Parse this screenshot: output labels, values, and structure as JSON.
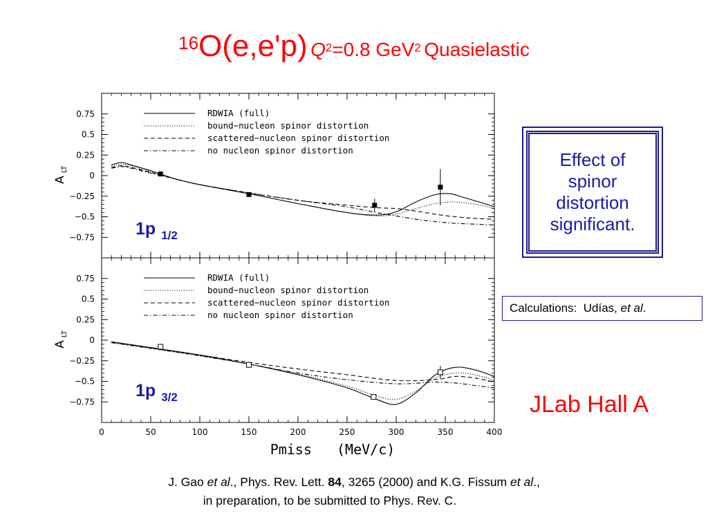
{
  "title": {
    "nucleus_mass": "16",
    "reaction": "O(e,e'p)",
    "q_symbol": "Q",
    "q_exp": "2",
    "q_value": "=0.8 GeV",
    "unit_exp": "2",
    "kind": "Quasielastic"
  },
  "effect_box": {
    "line1": "Effect of",
    "line2": "spinor",
    "line3": "distortion",
    "line4": "significant."
  },
  "calc_box": {
    "prefix": "Calculations:  Udías, ",
    "etal": "et al",
    "suffix": "."
  },
  "jlab": "JLab Hall A",
  "reference": {
    "a1": "J. Gao ",
    "a2": "et al",
    "a3": "., Phys. Rev. Lett. ",
    "a4": "84",
    "a5": ", 3265 (2000) and K.G. Fissum ",
    "a6": "et al",
    "a7": ".,",
    "line2": "in preparation, to be submitted to Phys. Rev. C."
  },
  "chart_data": {
    "type": "line",
    "shared_x_axis": {
      "label": "Pmiss   (MeV/c)",
      "ticks": [
        0,
        50,
        100,
        150,
        200,
        250,
        300,
        350,
        400
      ],
      "range": [
        0,
        400
      ]
    },
    "legend_entries": [
      "RDWIA (full)",
      "bound−nucleon spinor distortion",
      "scattered−nucleon spinor distortion",
      "no nucleon spinor distortion"
    ],
    "line_styles": [
      "solid",
      "dotted",
      "dashed",
      "dashdot"
    ],
    "panels": [
      {
        "label_main": "1p",
        "label_sub": "1/2",
        "ylabel_main": "A",
        "ylabel_sub": "LT",
        "yticks": [
          "0.75",
          "0.5",
          "0.25",
          "0",
          "−0.25",
          "−0.5",
          "−0.75"
        ],
        "ytick_values": [
          0.75,
          0.5,
          0.25,
          0,
          -0.25,
          -0.5,
          -0.75
        ],
        "ylim": [
          -1.0,
          1.0
        ],
        "marker": "filled-square",
        "data_points": [
          {
            "x": 60,
            "y": 0.02,
            "err": 0.03
          },
          {
            "x": 150,
            "y": -0.23,
            "err": 0.02
          },
          {
            "x": 278,
            "y": -0.36,
            "err": 0.08
          },
          {
            "x": 345,
            "y": -0.14,
            "err": 0.22
          }
        ],
        "series": [
          {
            "name": "RDWIA (full)",
            "points": [
              [
                10,
                0.13
              ],
              [
                20,
                0.16
              ],
              [
                30,
                0.13
              ],
              [
                50,
                0.06
              ],
              [
                75,
                -0.04
              ],
              [
                100,
                -0.11
              ],
              [
                150,
                -0.22
              ],
              [
                200,
                -0.34
              ],
              [
                250,
                -0.45
              ],
              [
                280,
                -0.48
              ],
              [
                300,
                -0.44
              ],
              [
                320,
                -0.32
              ],
              [
                340,
                -0.23
              ],
              [
                355,
                -0.22
              ],
              [
                370,
                -0.27
              ],
              [
                390,
                -0.34
              ],
              [
                400,
                -0.38
              ]
            ]
          },
          {
            "name": "bound−nucleon spinor distortion",
            "points": [
              [
                10,
                0.12
              ],
              [
                20,
                0.14
              ],
              [
                30,
                0.12
              ],
              [
                50,
                0.05
              ],
              [
                75,
                -0.04
              ],
              [
                100,
                -0.11
              ],
              [
                150,
                -0.22
              ],
              [
                200,
                -0.34
              ],
              [
                250,
                -0.45
              ],
              [
                280,
                -0.49
              ],
              [
                300,
                -0.47
              ],
              [
                320,
                -0.4
              ],
              [
                340,
                -0.34
              ],
              [
                355,
                -0.32
              ],
              [
                370,
                -0.33
              ],
              [
                390,
                -0.37
              ],
              [
                400,
                -0.4
              ]
            ]
          },
          {
            "name": "scattered−nucleon spinor distortion",
            "points": [
              [
                10,
                0.1
              ],
              [
                20,
                0.12
              ],
              [
                30,
                0.1
              ],
              [
                50,
                0.04
              ],
              [
                75,
                -0.04
              ],
              [
                100,
                -0.11
              ],
              [
                150,
                -0.21
              ],
              [
                200,
                -0.3
              ],
              [
                250,
                -0.36
              ],
              [
                280,
                -0.39
              ],
              [
                300,
                -0.4
              ],
              [
                320,
                -0.43
              ],
              [
                340,
                -0.47
              ],
              [
                360,
                -0.5
              ],
              [
                380,
                -0.52
              ],
              [
                400,
                -0.53
              ]
            ]
          },
          {
            "name": "no nucleon spinor distortion",
            "points": [
              [
                10,
                0.09
              ],
              [
                20,
                0.11
              ],
              [
                30,
                0.09
              ],
              [
                50,
                0.03
              ],
              [
                75,
                -0.04
              ],
              [
                100,
                -0.11
              ],
              [
                150,
                -0.21
              ],
              [
                200,
                -0.3
              ],
              [
                250,
                -0.38
              ],
              [
                280,
                -0.45
              ],
              [
                300,
                -0.49
              ],
              [
                320,
                -0.53
              ],
              [
                340,
                -0.56
              ],
              [
                360,
                -0.58
              ],
              [
                380,
                -0.59
              ],
              [
                400,
                -0.6
              ]
            ]
          }
        ]
      },
      {
        "label_main": "1p",
        "label_sub": "3/2",
        "ylabel_main": "A",
        "ylabel_sub": "LT",
        "yticks": [
          "0.75",
          "0.5",
          "0.25",
          "0",
          "−0.25",
          "−0.5",
          "−0.75"
        ],
        "ytick_values": [
          0.75,
          0.5,
          0.25,
          0,
          -0.25,
          -0.5,
          -0.75
        ],
        "ylim": [
          -1.0,
          1.0
        ],
        "marker": "open-square",
        "data_points": [
          {
            "x": 60,
            "y": -0.08,
            "err": 0.02
          },
          {
            "x": 150,
            "y": -0.3,
            "err": 0.02
          },
          {
            "x": 277,
            "y": -0.69,
            "err": 0.02
          },
          {
            "x": 345,
            "y": -0.39,
            "err": 0.08
          }
        ],
        "series": [
          {
            "name": "RDWIA (full)",
            "points": [
              [
                10,
                -0.02
              ],
              [
                50,
                -0.09
              ],
              [
                100,
                -0.18
              ],
              [
                150,
                -0.29
              ],
              [
                200,
                -0.42
              ],
              [
                250,
                -0.58
              ],
              [
                280,
                -0.72
              ],
              [
                300,
                -0.78
              ],
              [
                320,
                -0.64
              ],
              [
                340,
                -0.42
              ],
              [
                360,
                -0.33
              ],
              [
                380,
                -0.36
              ],
              [
                400,
                -0.44
              ]
            ]
          },
          {
            "name": "bound−nucleon spinor distortion",
            "points": [
              [
                10,
                -0.03
              ],
              [
                50,
                -0.1
              ],
              [
                100,
                -0.19
              ],
              [
                150,
                -0.29
              ],
              [
                200,
                -0.41
              ],
              [
                250,
                -0.56
              ],
              [
                280,
                -0.68
              ],
              [
                300,
                -0.72
              ],
              [
                320,
                -0.62
              ],
              [
                340,
                -0.46
              ],
              [
                360,
                -0.4
              ],
              [
                380,
                -0.42
              ],
              [
                400,
                -0.49
              ]
            ]
          },
          {
            "name": "scattered−nucleon spinor distortion",
            "points": [
              [
                10,
                -0.02
              ],
              [
                50,
                -0.09
              ],
              [
                100,
                -0.18
              ],
              [
                150,
                -0.27
              ],
              [
                200,
                -0.35
              ],
              [
                250,
                -0.42
              ],
              [
                300,
                -0.49
              ],
              [
                340,
                -0.48
              ],
              [
                360,
                -0.44
              ],
              [
                380,
                -0.46
              ],
              [
                400,
                -0.51
              ]
            ]
          },
          {
            "name": "no nucleon spinor distortion",
            "points": [
              [
                10,
                -0.03
              ],
              [
                50,
                -0.1
              ],
              [
                100,
                -0.19
              ],
              [
                150,
                -0.29
              ],
              [
                200,
                -0.4
              ],
              [
                250,
                -0.48
              ],
              [
                300,
                -0.53
              ],
              [
                340,
                -0.51
              ],
              [
                360,
                -0.52
              ],
              [
                380,
                -0.55
              ],
              [
                400,
                -0.58
              ]
            ]
          }
        ]
      }
    ]
  }
}
